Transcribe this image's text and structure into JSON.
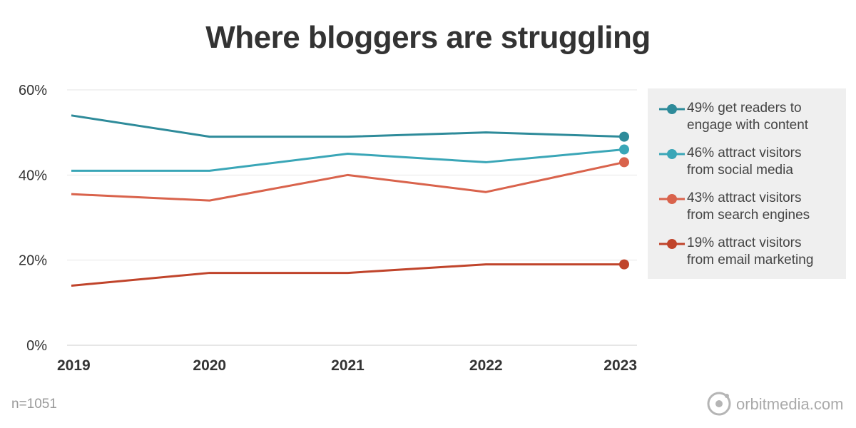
{
  "title": "Where bloggers are struggling",
  "footnote": "n=1051",
  "brand": {
    "name": "orbitmedia.com",
    "icon": "orbit-logo-icon"
  },
  "legend": [
    {
      "line1": "49% get readers to",
      "line2": "engage with content",
      "color": "#2e8b9a"
    },
    {
      "line1": "46% attract visitors",
      "line2": "from social media",
      "color": "#3aa6b7"
    },
    {
      "line1": "43% attract visitors",
      "line2": "from search engines",
      "color": "#d9634c"
    },
    {
      "line1": "19% attract visitors",
      "line2": "from email marketing",
      "color": "#c0442b"
    }
  ],
  "chart_data": {
    "type": "line",
    "title": "Where bloggers are struggling",
    "x": [
      "2019",
      "2020",
      "2021",
      "2022",
      "2023"
    ],
    "y_ticks": [
      "0%",
      "20%",
      "40%",
      "60%"
    ],
    "ylim": [
      0,
      60
    ],
    "grid": true,
    "legend_position": "right",
    "series": [
      {
        "name": "49% get readers to engage with content",
        "color": "#2e8b9a",
        "values": [
          54,
          49,
          49,
          50,
          49
        ]
      },
      {
        "name": "46% attract visitors from social media",
        "color": "#3aa6b7",
        "values": [
          41,
          41,
          45,
          43,
          46
        ]
      },
      {
        "name": "43% attract visitors from search engines",
        "color": "#d9634c",
        "values": [
          35.5,
          34,
          40,
          36,
          43
        ]
      },
      {
        "name": "19% attract visitors from email marketing",
        "color": "#c0442b",
        "values": [
          14,
          17,
          17,
          19,
          19
        ]
      }
    ]
  }
}
